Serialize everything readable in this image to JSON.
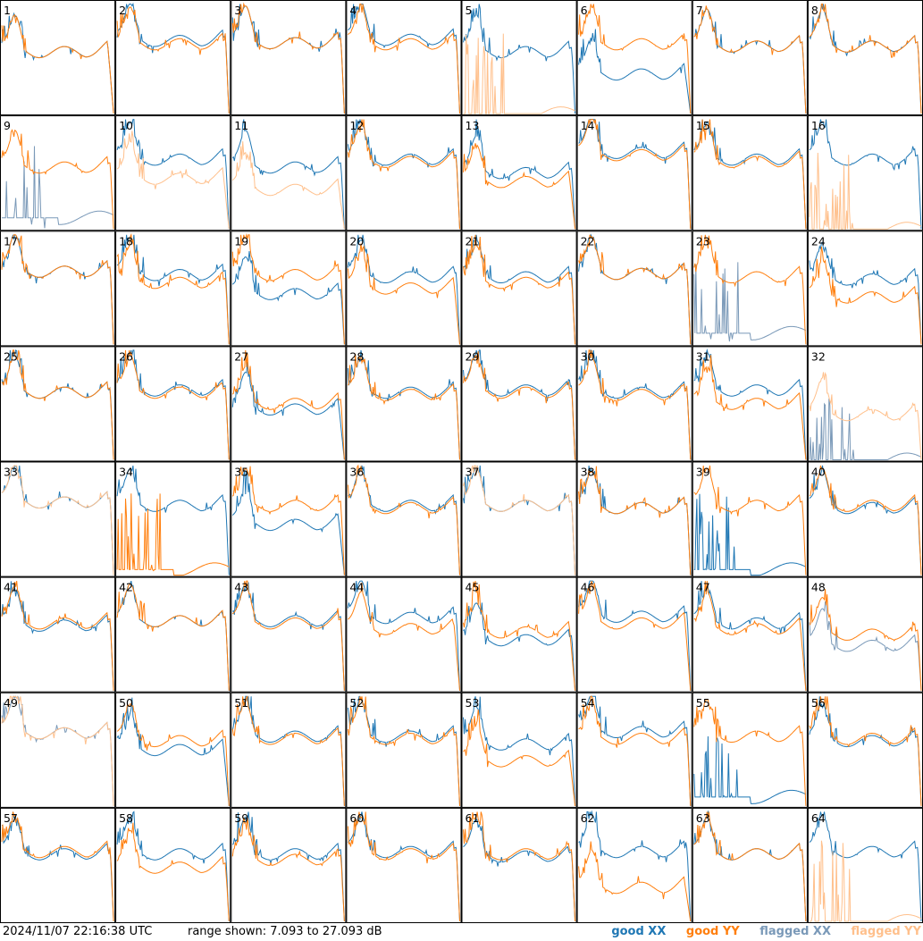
{
  "colors": {
    "good_xx": "#1f77b4",
    "good_yy": "#ff7f0e",
    "flagged_xx": "#7a99b8",
    "flagged_yy": "#ffc08c"
  },
  "footer": {
    "timestamp": "2024/11/07 22:16:38 UTC",
    "range_text": "range shown: 7.093 to 27.093 dB"
  },
  "legend": {
    "good_xx": "good XX",
    "good_yy": "good YY",
    "flagged_xx": "flagged XX",
    "flagged_yy": "flagged YY"
  },
  "chart_data": {
    "type": "line",
    "grid_layout": {
      "rows": 8,
      "cols": 8
    },
    "y_range_db": [
      7.093,
      27.093
    ],
    "series_names": [
      "good XX",
      "good YY",
      "flagged XX",
      "flagged YY"
    ],
    "panels": [
      {
        "label": "1",
        "xx": "good",
        "yy": "good",
        "xx_level": 0.55,
        "yy_level": 0.55,
        "xx_dropout": false,
        "yy_dropout": false,
        "xx_drop_at": 0.95,
        "yy_drop_at": 0.95
      },
      {
        "label": "2",
        "xx": "good",
        "yy": "good",
        "xx_level": 0.65,
        "yy_level": 0.62,
        "xx_dropout": false,
        "yy_dropout": false,
        "xx_drop_at": 0.97,
        "yy_drop_at": 0.97
      },
      {
        "label": "3",
        "xx": "good",
        "yy": "good",
        "xx_level": 0.63,
        "yy_level": 0.63,
        "xx_dropout": false,
        "yy_dropout": false,
        "xx_drop_at": 0.97,
        "yy_drop_at": 0.97
      },
      {
        "label": "4",
        "xx": "good",
        "yy": "good",
        "xx_level": 0.66,
        "yy_level": 0.62,
        "xx_dropout": false,
        "yy_dropout": false,
        "xx_drop_at": 0.97,
        "yy_drop_at": 0.97
      },
      {
        "label": "5",
        "xx": "good",
        "yy": "flagged",
        "xx_level": 0.55,
        "yy_level": 0.0,
        "xx_dropout": false,
        "yy_dropout": true,
        "xx_drop_at": 0.97,
        "yy_drop_at": 0.97
      },
      {
        "label": "6",
        "xx": "good",
        "yy": "good",
        "xx_level": 0.35,
        "yy_level": 0.62,
        "xx_dropout": false,
        "yy_dropout": false,
        "xx_drop_at": 0.95,
        "yy_drop_at": 0.97
      },
      {
        "label": "7",
        "xx": "good",
        "yy": "good",
        "xx_level": 0.6,
        "yy_level": 0.6,
        "xx_dropout": false,
        "yy_dropout": false,
        "xx_drop_at": 0.97,
        "yy_drop_at": 0.97
      },
      {
        "label": "8",
        "xx": "good",
        "yy": "good",
        "xx_level": 0.6,
        "yy_level": 0.6,
        "xx_dropout": false,
        "yy_dropout": false,
        "xx_drop_at": 0.97,
        "yy_drop_at": 0.97
      },
      {
        "label": "9",
        "xx": "flagged",
        "yy": "good",
        "xx_level": 0.1,
        "yy_level": 0.55,
        "xx_dropout": true,
        "yy_dropout": false,
        "xx_drop_at": 0.97,
        "yy_drop_at": 0.97
      },
      {
        "label": "10",
        "xx": "good",
        "yy": "flagged",
        "xx_level": 0.62,
        "yy_level": 0.45,
        "xx_dropout": false,
        "yy_dropout": false,
        "xx_drop_at": 0.97,
        "yy_drop_at": 0.95
      },
      {
        "label": "11",
        "xx": "good",
        "yy": "flagged",
        "xx_level": 0.55,
        "yy_level": 0.35,
        "xx_dropout": false,
        "yy_dropout": false,
        "xx_drop_at": 0.97,
        "yy_drop_at": 0.95
      },
      {
        "label": "12",
        "xx": "good",
        "yy": "good",
        "xx_level": 0.62,
        "yy_level": 0.6,
        "xx_dropout": false,
        "yy_dropout": false,
        "xx_drop_at": 0.97,
        "yy_drop_at": 0.97
      },
      {
        "label": "13",
        "xx": "good",
        "yy": "good",
        "xx_level": 0.5,
        "yy_level": 0.42,
        "xx_dropout": false,
        "yy_dropout": false,
        "xx_drop_at": 0.97,
        "yy_drop_at": 0.95
      },
      {
        "label": "14",
        "xx": "good",
        "yy": "good",
        "xx_level": 0.68,
        "yy_level": 0.66,
        "xx_dropout": false,
        "yy_dropout": false,
        "xx_drop_at": 0.97,
        "yy_drop_at": 0.97
      },
      {
        "label": "15",
        "xx": "good",
        "yy": "good",
        "xx_level": 0.62,
        "yy_level": 0.6,
        "xx_dropout": false,
        "yy_dropout": false,
        "xx_drop_at": 0.97,
        "yy_drop_at": 0.97
      },
      {
        "label": "16",
        "xx": "good",
        "yy": "flagged",
        "xx_level": 0.62,
        "yy_level": 0.0,
        "xx_dropout": false,
        "yy_dropout": true,
        "xx_drop_at": 0.97,
        "yy_drop_at": 0.97
      },
      {
        "label": "17",
        "xx": "good",
        "yy": "good",
        "xx_level": 0.65,
        "yy_level": 0.65,
        "xx_dropout": false,
        "yy_dropout": false,
        "xx_drop_at": 0.97,
        "yy_drop_at": 0.97
      },
      {
        "label": "18",
        "xx": "good",
        "yy": "good",
        "xx_level": 0.62,
        "yy_level": 0.55,
        "xx_dropout": false,
        "yy_dropout": false,
        "xx_drop_at": 0.97,
        "yy_drop_at": 0.97
      },
      {
        "label": "19",
        "xx": "good",
        "yy": "good",
        "xx_level": 0.45,
        "yy_level": 0.62,
        "xx_dropout": false,
        "yy_dropout": false,
        "xx_drop_at": 0.97,
        "yy_drop_at": 0.97
      },
      {
        "label": "20",
        "xx": "good",
        "yy": "good",
        "xx_level": 0.6,
        "yy_level": 0.5,
        "xx_dropout": false,
        "yy_dropout": false,
        "xx_drop_at": 0.97,
        "yy_drop_at": 0.95
      },
      {
        "label": "21",
        "xx": "good",
        "yy": "good",
        "xx_level": 0.6,
        "yy_level": 0.55,
        "xx_dropout": false,
        "yy_dropout": false,
        "xx_drop_at": 0.97,
        "yy_drop_at": 0.97
      },
      {
        "label": "22",
        "xx": "good",
        "yy": "good",
        "xx_level": 0.63,
        "yy_level": 0.63,
        "xx_dropout": false,
        "yy_dropout": false,
        "xx_drop_at": 0.97,
        "yy_drop_at": 0.97
      },
      {
        "label": "23",
        "xx": "flagged",
        "yy": "good",
        "xx_level": 0.1,
        "yy_level": 0.6,
        "xx_dropout": true,
        "yy_dropout": false,
        "xx_drop_at": 0.97,
        "yy_drop_at": 0.97
      },
      {
        "label": "24",
        "xx": "good",
        "yy": "good",
        "xx_level": 0.58,
        "yy_level": 0.42,
        "xx_dropout": false,
        "yy_dropout": false,
        "xx_drop_at": 0.97,
        "yy_drop_at": 0.97
      },
      {
        "label": "25",
        "xx": "good",
        "yy": "good",
        "xx_level": 0.6,
        "yy_level": 0.6,
        "xx_dropout": false,
        "yy_dropout": false,
        "xx_drop_at": 0.97,
        "yy_drop_at": 0.97
      },
      {
        "label": "26",
        "xx": "good",
        "yy": "good",
        "xx_level": 0.62,
        "yy_level": 0.6,
        "xx_dropout": false,
        "yy_dropout": false,
        "xx_drop_at": 0.97,
        "yy_drop_at": 0.97
      },
      {
        "label": "27",
        "xx": "good",
        "yy": "good",
        "xx_level": 0.45,
        "yy_level": 0.5,
        "xx_dropout": false,
        "yy_dropout": false,
        "xx_drop_at": 0.95,
        "yy_drop_at": 0.97
      },
      {
        "label": "28",
        "xx": "good",
        "yy": "good",
        "xx_level": 0.6,
        "yy_level": 0.58,
        "xx_dropout": false,
        "yy_dropout": false,
        "xx_drop_at": 0.97,
        "yy_drop_at": 0.97
      },
      {
        "label": "29",
        "xx": "good",
        "yy": "good",
        "xx_level": 0.62,
        "yy_level": 0.6,
        "xx_dropout": false,
        "yy_dropout": false,
        "xx_drop_at": 0.97,
        "yy_drop_at": 0.97
      },
      {
        "label": "30",
        "xx": "good",
        "yy": "good",
        "xx_level": 0.6,
        "yy_level": 0.58,
        "xx_dropout": false,
        "yy_dropout": false,
        "xx_drop_at": 0.97,
        "yy_drop_at": 0.97
      },
      {
        "label": "31",
        "xx": "good",
        "yy": "good",
        "xx_level": 0.62,
        "yy_level": 0.5,
        "xx_dropout": false,
        "yy_dropout": false,
        "xx_drop_at": 0.97,
        "yy_drop_at": 0.95
      },
      {
        "label": "32",
        "xx": "flagged",
        "yy": "flagged",
        "xx_level": 0.0,
        "yy_level": 0.4,
        "xx_dropout": true,
        "yy_dropout": false,
        "xx_drop_at": 0.97,
        "yy_drop_at": 0.97
      },
      {
        "label": "33",
        "xx": "good",
        "yy": "flagged",
        "xx_level": 0.65,
        "yy_level": 0.65,
        "xx_dropout": false,
        "yy_dropout": false,
        "xx_drop_at": 0.97,
        "yy_drop_at": 0.97
      },
      {
        "label": "34",
        "xx": "good",
        "yy": "good",
        "xx_level": 0.62,
        "yy_level": 0.05,
        "xx_dropout": false,
        "yy_dropout": true,
        "xx_drop_at": 0.97,
        "yy_drop_at": 0.97
      },
      {
        "label": "35",
        "xx": "good",
        "yy": "good",
        "xx_level": 0.45,
        "yy_level": 0.62,
        "xx_dropout": false,
        "yy_dropout": false,
        "xx_drop_at": 0.95,
        "yy_drop_at": 0.97
      },
      {
        "label": "36",
        "xx": "good",
        "yy": "good",
        "xx_level": 0.62,
        "yy_level": 0.6,
        "xx_dropout": false,
        "yy_dropout": false,
        "xx_drop_at": 0.97,
        "yy_drop_at": 0.97
      },
      {
        "label": "37",
        "xx": "good",
        "yy": "flagged",
        "xx_level": 0.62,
        "yy_level": 0.62,
        "xx_dropout": false,
        "yy_dropout": false,
        "xx_drop_at": 0.97,
        "yy_drop_at": 0.97
      },
      {
        "label": "38",
        "xx": "good",
        "yy": "good",
        "xx_level": 0.6,
        "yy_level": 0.6,
        "xx_dropout": false,
        "yy_dropout": false,
        "xx_drop_at": 0.97,
        "yy_drop_at": 0.97
      },
      {
        "label": "39",
        "xx": "good",
        "yy": "good",
        "xx_level": 0.05,
        "yy_level": 0.62,
        "xx_dropout": true,
        "yy_dropout": false,
        "xx_drop_at": 0.97,
        "yy_drop_at": 0.97
      },
      {
        "label": "40",
        "xx": "good",
        "yy": "good",
        "xx_level": 0.6,
        "yy_level": 0.62,
        "xx_dropout": false,
        "yy_dropout": false,
        "xx_drop_at": 0.97,
        "yy_drop_at": 0.97
      },
      {
        "label": "41",
        "xx": "good",
        "yy": "good",
        "xx_level": 0.58,
        "yy_level": 0.6,
        "xx_dropout": false,
        "yy_dropout": false,
        "xx_drop_at": 0.97,
        "yy_drop_at": 0.97
      },
      {
        "label": "42",
        "xx": "good",
        "yy": "good",
        "xx_level": 0.62,
        "yy_level": 0.62,
        "xx_dropout": false,
        "yy_dropout": false,
        "xx_drop_at": 0.97,
        "yy_drop_at": 0.97
      },
      {
        "label": "43",
        "xx": "good",
        "yy": "good",
        "xx_level": 0.62,
        "yy_level": 0.6,
        "xx_dropout": false,
        "yy_dropout": false,
        "xx_drop_at": 0.97,
        "yy_drop_at": 0.97
      },
      {
        "label": "44",
        "xx": "good",
        "yy": "good",
        "xx_level": 0.65,
        "yy_level": 0.55,
        "xx_dropout": false,
        "yy_dropout": false,
        "xx_drop_at": 0.97,
        "yy_drop_at": 0.95
      },
      {
        "label": "45",
        "xx": "good",
        "yy": "good",
        "xx_level": 0.45,
        "yy_level": 0.52,
        "xx_dropout": false,
        "yy_dropout": false,
        "xx_drop_at": 0.97,
        "yy_drop_at": 0.95
      },
      {
        "label": "46",
        "xx": "good",
        "yy": "good",
        "xx_level": 0.66,
        "yy_level": 0.6,
        "xx_dropout": false,
        "yy_dropout": false,
        "xx_drop_at": 0.97,
        "yy_drop_at": 0.95
      },
      {
        "label": "47",
        "xx": "good",
        "yy": "good",
        "xx_level": 0.6,
        "yy_level": 0.55,
        "xx_dropout": false,
        "yy_dropout": false,
        "xx_drop_at": 0.97,
        "yy_drop_at": 0.95
      },
      {
        "label": "48",
        "xx": "flagged",
        "yy": "good",
        "xx_level": 0.4,
        "yy_level": 0.5,
        "xx_dropout": false,
        "yy_dropout": false,
        "xx_drop_at": 0.97,
        "yy_drop_at": 0.97
      },
      {
        "label": "49",
        "xx": "flagged",
        "yy": "flagged",
        "xx_level": 0.65,
        "yy_level": 0.65,
        "xx_dropout": false,
        "yy_dropout": false,
        "xx_drop_at": 0.97,
        "yy_drop_at": 0.97
      },
      {
        "label": "50",
        "xx": "good",
        "yy": "good",
        "xx_level": 0.5,
        "yy_level": 0.58,
        "xx_dropout": false,
        "yy_dropout": false,
        "xx_drop_at": 0.95,
        "yy_drop_at": 0.97
      },
      {
        "label": "51",
        "xx": "good",
        "yy": "good",
        "xx_level": 0.62,
        "yy_level": 0.6,
        "xx_dropout": false,
        "yy_dropout": false,
        "xx_drop_at": 0.97,
        "yy_drop_at": 0.97
      },
      {
        "label": "52",
        "xx": "good",
        "yy": "good",
        "xx_level": 0.62,
        "yy_level": 0.6,
        "xx_dropout": false,
        "yy_dropout": false,
        "xx_drop_at": 0.97,
        "yy_drop_at": 0.97
      },
      {
        "label": "53",
        "xx": "good",
        "yy": "good",
        "xx_level": 0.55,
        "yy_level": 0.4,
        "xx_dropout": false,
        "yy_dropout": false,
        "xx_drop_at": 0.97,
        "yy_drop_at": 0.95
      },
      {
        "label": "54",
        "xx": "good",
        "yy": "good",
        "xx_level": 0.66,
        "yy_level": 0.6,
        "xx_dropout": false,
        "yy_dropout": false,
        "xx_drop_at": 0.97,
        "yy_drop_at": 0.97
      },
      {
        "label": "55",
        "xx": "good",
        "yy": "good",
        "xx_level": 0.08,
        "yy_level": 0.62,
        "xx_dropout": true,
        "yy_dropout": false,
        "xx_drop_at": 0.97,
        "yy_drop_at": 0.97
      },
      {
        "label": "56",
        "xx": "good",
        "yy": "good",
        "xx_level": 0.58,
        "yy_level": 0.6,
        "xx_dropout": false,
        "yy_dropout": false,
        "xx_drop_at": 0.97,
        "yy_drop_at": 0.97
      },
      {
        "label": "57",
        "xx": "good",
        "yy": "good",
        "xx_level": 0.6,
        "yy_level": 0.62,
        "xx_dropout": false,
        "yy_dropout": false,
        "xx_drop_at": 0.97,
        "yy_drop_at": 0.97
      },
      {
        "label": "58",
        "xx": "good",
        "yy": "good",
        "xx_level": 0.6,
        "yy_level": 0.48,
        "xx_dropout": false,
        "yy_dropout": false,
        "xx_drop_at": 0.97,
        "yy_drop_at": 0.97
      },
      {
        "label": "59",
        "xx": "good",
        "yy": "good",
        "xx_level": 0.6,
        "yy_level": 0.55,
        "xx_dropout": false,
        "yy_dropout": false,
        "xx_drop_at": 0.97,
        "yy_drop_at": 0.97
      },
      {
        "label": "60",
        "xx": "good",
        "yy": "good",
        "xx_level": 0.62,
        "yy_level": 0.6,
        "xx_dropout": false,
        "yy_dropout": false,
        "xx_drop_at": 0.97,
        "yy_drop_at": 0.97
      },
      {
        "label": "61",
        "xx": "good",
        "yy": "good",
        "xx_level": 0.58,
        "yy_level": 0.6,
        "xx_dropout": false,
        "yy_dropout": false,
        "xx_drop_at": 0.97,
        "yy_drop_at": 0.97
      },
      {
        "label": "62",
        "xx": "good",
        "yy": "good",
        "xx_level": 0.62,
        "yy_level": 0.3,
        "xx_dropout": false,
        "yy_dropout": false,
        "xx_drop_at": 0.97,
        "yy_drop_at": 0.95
      },
      {
        "label": "63",
        "xx": "good",
        "yy": "good",
        "xx_level": 0.6,
        "yy_level": 0.6,
        "xx_dropout": false,
        "yy_dropout": false,
        "xx_drop_at": 0.97,
        "yy_drop_at": 0.97
      },
      {
        "label": "64",
        "xx": "good",
        "yy": "flagged",
        "xx_level": 0.62,
        "yy_level": 0.0,
        "xx_dropout": false,
        "yy_dropout": true,
        "xx_drop_at": 0.97,
        "yy_drop_at": 0.97
      }
    ]
  }
}
